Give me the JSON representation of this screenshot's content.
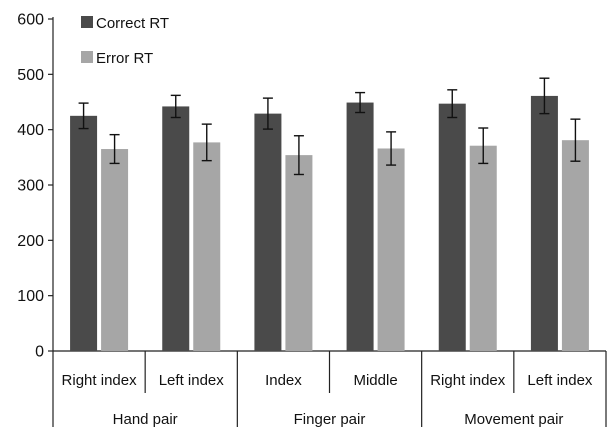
{
  "chart_data": {
    "type": "bar",
    "title": "",
    "xlabel": "",
    "ylabel": "",
    "ylim": [
      0,
      600
    ],
    "yticks": [
      0,
      100,
      200,
      300,
      400,
      500,
      600
    ],
    "grid": false,
    "legend_position": "top-left",
    "groups": [
      {
        "label": "Hand pair",
        "categories": [
          "Right index",
          "Left index"
        ]
      },
      {
        "label": "Finger pair",
        "categories": [
          "Index",
          "Middle"
        ]
      },
      {
        "label": "Movement pair",
        "categories": [
          "Right index",
          "Left index"
        ]
      }
    ],
    "categories": [
      "Right index",
      "Left index",
      "Index",
      "Middle",
      "Right index",
      "Left index"
    ],
    "series": [
      {
        "name": "Correct RT",
        "color": "#4a4a4a",
        "values": [
          425,
          442,
          429,
          449,
          447,
          461
        ],
        "errors": [
          23,
          20,
          28,
          18,
          25,
          32
        ]
      },
      {
        "name": "Error RT",
        "color": "#a6a6a6",
        "values": [
          365,
          377,
          354,
          366,
          371,
          381
        ],
        "errors": [
          26,
          33,
          35,
          30,
          32,
          38
        ]
      }
    ]
  }
}
